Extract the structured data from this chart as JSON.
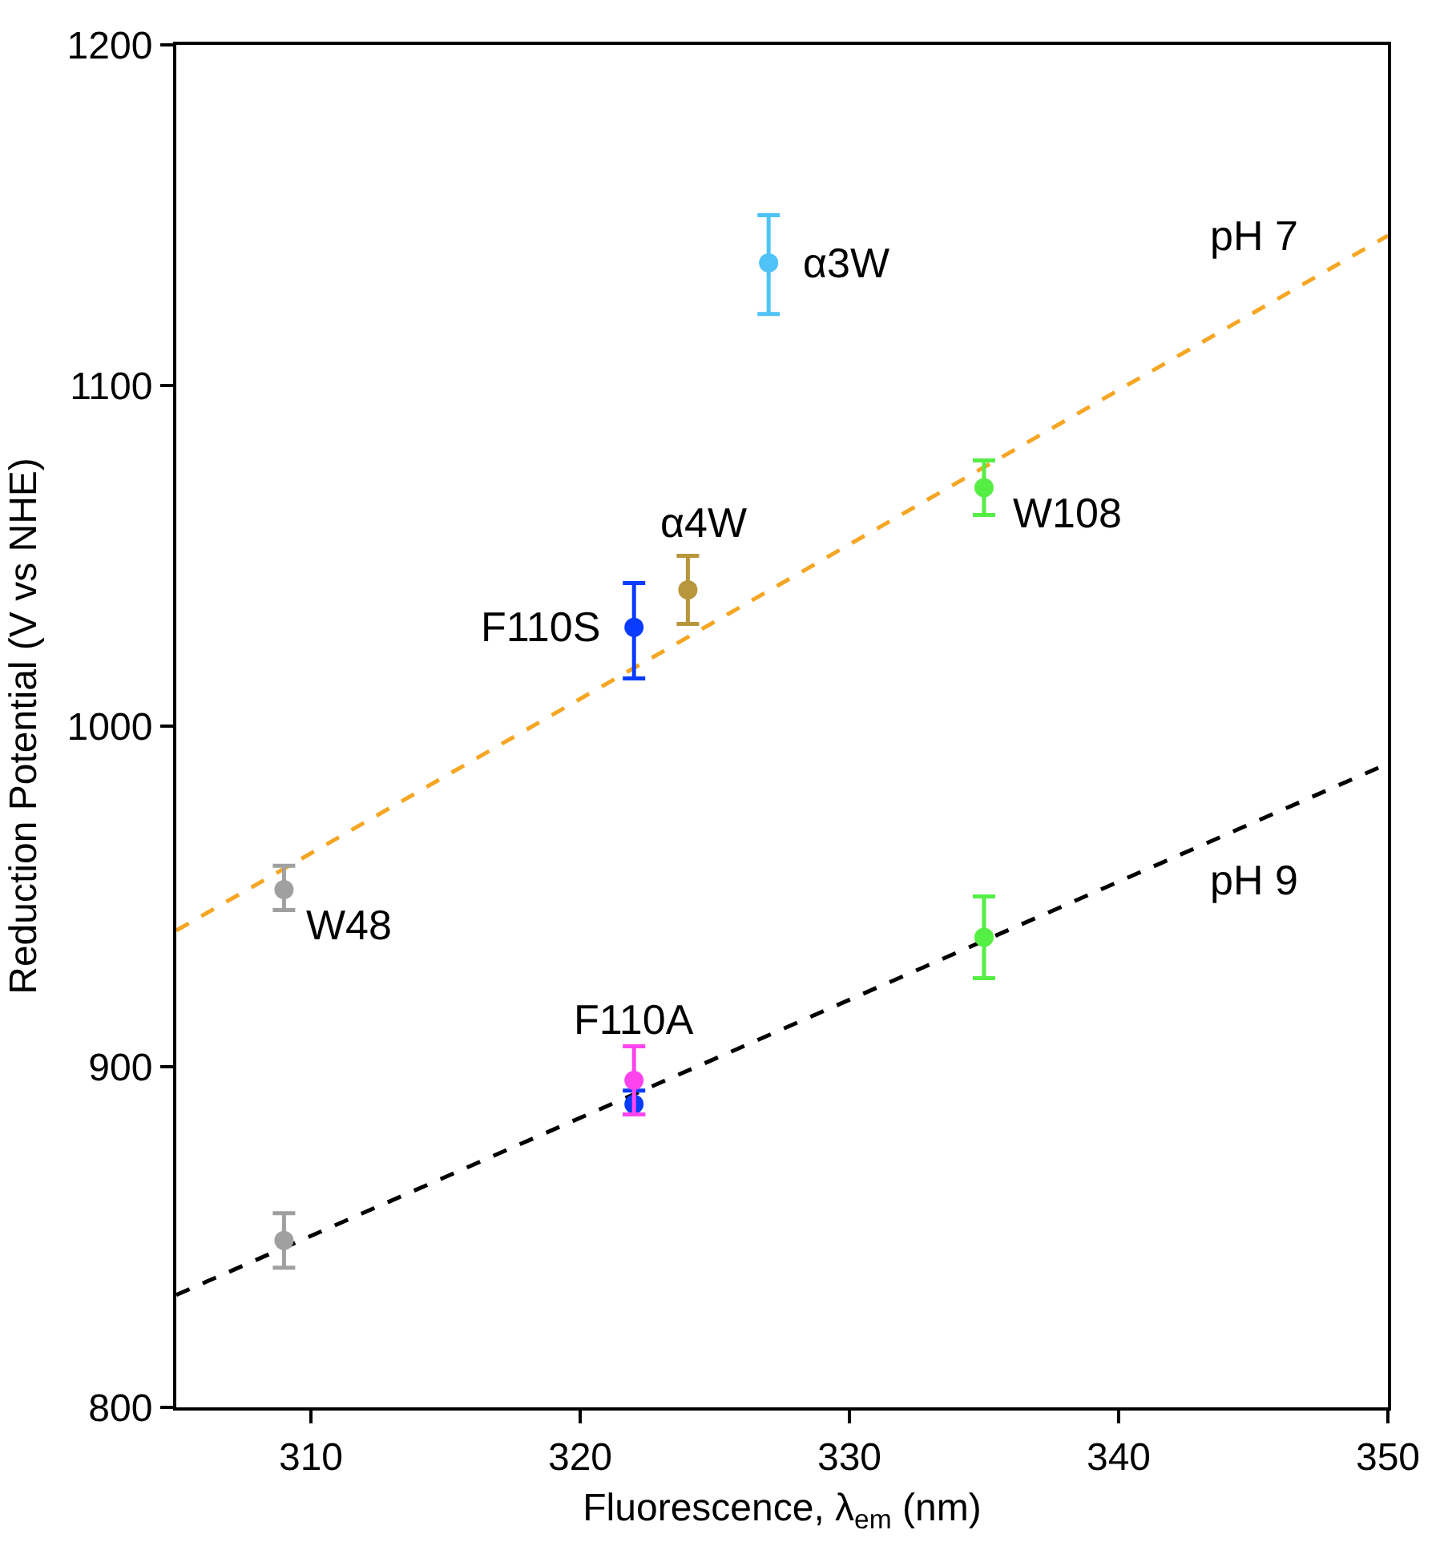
{
  "chart_data": {
    "type": "scatter",
    "xlabel": "Fluorescence, λ$_{em}$ (nm)",
    "ylabel": "Reduction Potential (V vs NHE)",
    "xlim": [
      305,
      350
    ],
    "xticks": [
      310,
      320,
      330,
      340,
      350
    ],
    "ylim": [
      800,
      1200
    ],
    "yticks": [
      800,
      900,
      1000,
      1100,
      1200
    ],
    "grid": false,
    "marker": "circle",
    "series": [
      {
        "type": "line",
        "line_style": "dashed",
        "marker": "none",
        "color": "#f5a623",
        "x": [
          305,
          350
        ],
        "values": [
          940,
          1144
        ]
      },
      {
        "type": "line",
        "line_style": "dashed",
        "marker": "none",
        "color": "#000000",
        "x": [
          305,
          350
        ],
        "values": [
          833,
          989
        ]
      },
      {
        "color": "#4fc3f7",
        "x": [
          327
        ],
        "values": [
          1136
        ],
        "errors": [
          [
            1121,
            1150
          ]
        ]
      },
      {
        "color": "#b8963c",
        "x": [
          324
        ],
        "values": [
          1040
        ],
        "errors": [
          [
            1030,
            1050
          ]
        ]
      },
      {
        "color": "#0a3cff",
        "x": [
          322
        ],
        "values": [
          1029
        ],
        "errors": [
          [
            1014,
            1042
          ]
        ]
      },
      {
        "color": "#55ee44",
        "x": [
          335
        ],
        "values": [
          1070
        ],
        "errors": [
          [
            1062,
            1078
          ]
        ]
      },
      {
        "color": "#a0a0a0",
        "x": [
          309
        ],
        "values": [
          952
        ],
        "errors": [
          [
            946,
            959
          ]
        ]
      },
      {
        "color": "#a0a0a0",
        "x": [
          309
        ],
        "values": [
          849
        ],
        "errors": [
          [
            841,
            857
          ]
        ]
      },
      {
        "color": "#0a3cff",
        "x": [
          322
        ],
        "values": [
          889
        ],
        "errors": [
          [
            886,
            893
          ]
        ]
      },
      {
        "color": "#ff44ee",
        "x": [
          322
        ],
        "values": [
          896
        ],
        "errors": [
          [
            886,
            906
          ]
        ]
      },
      {
        "color": "#55ee44",
        "x": [
          335
        ],
        "values": [
          938
        ],
        "errors": [
          [
            926,
            950
          ]
        ]
      }
    ],
    "annotations": [
      {
        "text": "α3W",
        "x": 327,
        "y": 1136
      },
      {
        "text": "α4W",
        "x": 324,
        "y": 1040
      },
      {
        "text": "F110S",
        "x": 322,
        "y": 1029
      },
      {
        "text": "W108",
        "x": 335,
        "y": 1070
      },
      {
        "text": "W48",
        "x": 309,
        "y": 952
      },
      {
        "text": "F110A",
        "x": 322,
        "y": 896
      },
      {
        "text": "pH 7",
        "x": 345,
        "y": 1121.3
      },
      {
        "text": "pH 9",
        "x": 345,
        "y": 971.7
      }
    ]
  }
}
